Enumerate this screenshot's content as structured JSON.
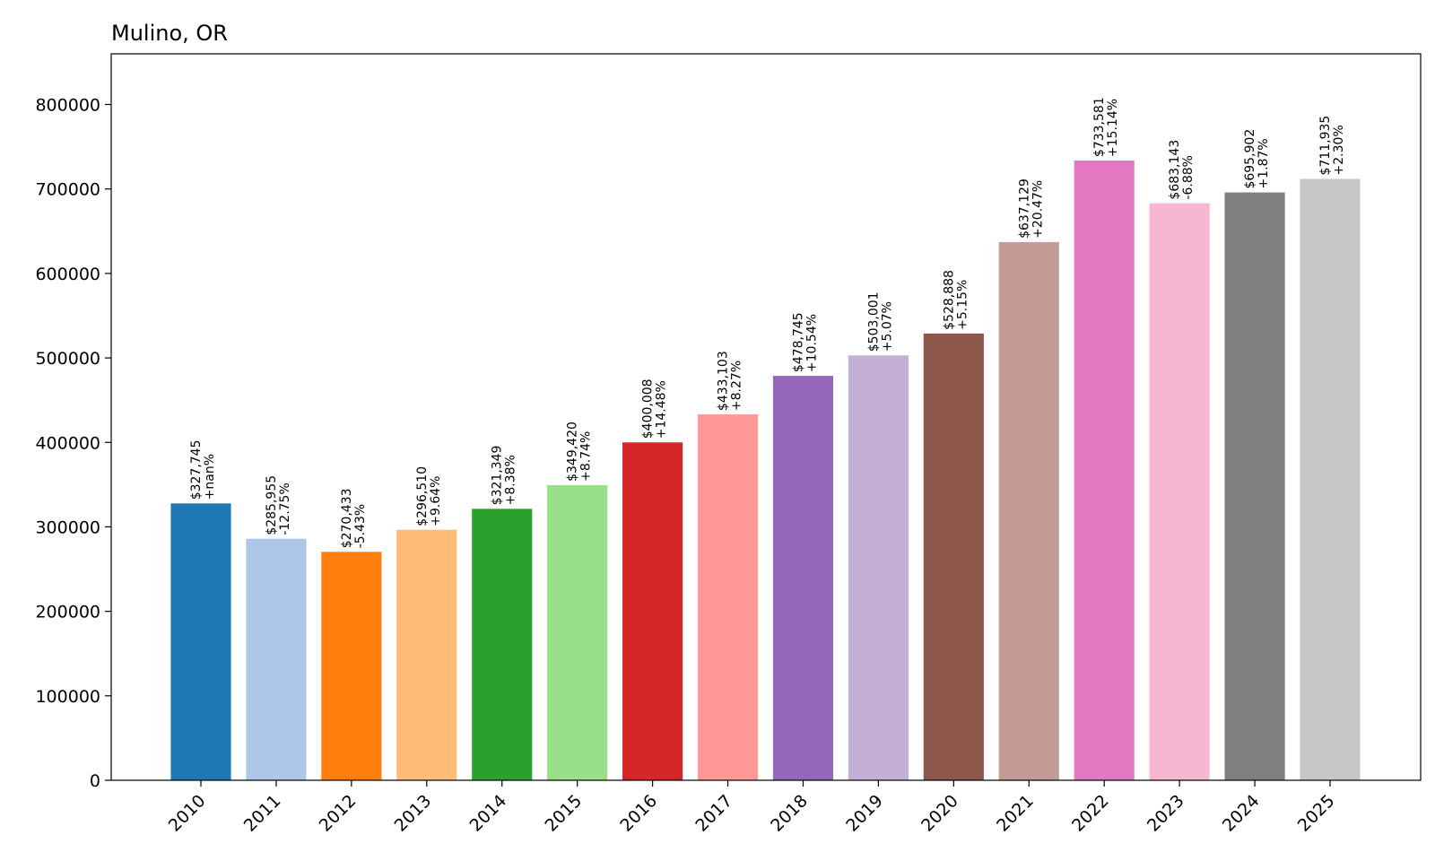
{
  "chart_data": {
    "type": "bar",
    "title": "Mulino, OR",
    "xlabel": "",
    "ylabel": "",
    "ylim": [
      0,
      860000
    ],
    "yticks": [
      0,
      100000,
      200000,
      300000,
      400000,
      500000,
      600000,
      700000,
      800000
    ],
    "grid": false,
    "legend": "none",
    "categories": [
      "2010",
      "2011",
      "2012",
      "2013",
      "2014",
      "2015",
      "2016",
      "2017",
      "2018",
      "2019",
      "2020",
      "2021",
      "2022",
      "2023",
      "2024",
      "2025"
    ],
    "values": [
      327745,
      285955,
      270433,
      296510,
      321349,
      349420,
      400008,
      433103,
      478745,
      503001,
      528888,
      637129,
      733581,
      683143,
      695902,
      711935
    ],
    "value_labels": [
      "$327,745",
      "$285,955",
      "$270,433",
      "$296,510",
      "$321,349",
      "$349,420",
      "$400,008",
      "$433,103",
      "$478,745",
      "$503,001",
      "$528,888",
      "$637,129",
      "$733,581",
      "$683,143",
      "$695,902",
      "$711,935"
    ],
    "change_labels": [
      "+nan%",
      "-12.75%",
      "-5.43%",
      "+9.64%",
      "+8.38%",
      "+8.74%",
      "+14.48%",
      "+8.27%",
      "+10.54%",
      "+5.07%",
      "+5.15%",
      "+20.47%",
      "+15.14%",
      "-6.88%",
      "+1.87%",
      "+2.30%"
    ],
    "colors": [
      "#1f77b4",
      "#aec7e8",
      "#ff7f0e",
      "#ffbb78",
      "#2ca02c",
      "#98df8a",
      "#d62728",
      "#ff9896",
      "#9467bd",
      "#c5b0d5",
      "#8c564b",
      "#c49c94",
      "#e377c2",
      "#f7b6d2",
      "#7f7f7f",
      "#c7c7c7"
    ]
  }
}
